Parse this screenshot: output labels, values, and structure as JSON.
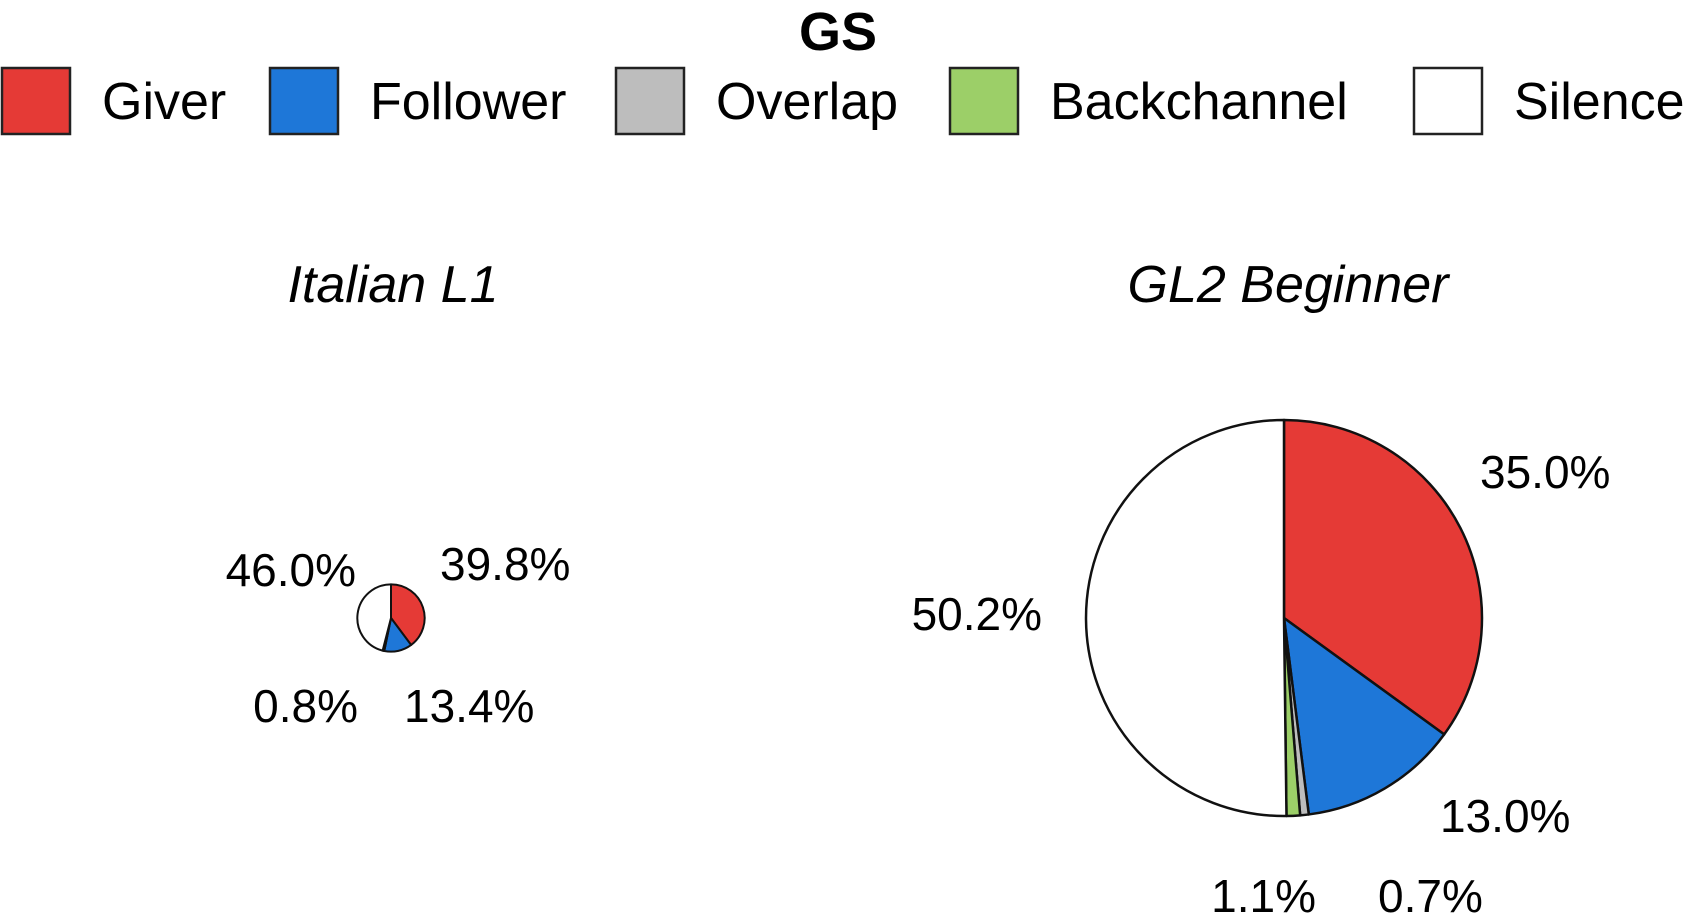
{
  "title": "GS",
  "legend": [
    {
      "label": "Giver",
      "color": "#e53a36"
    },
    {
      "label": "Follower",
      "color": "#1e77d8"
    },
    {
      "label": "Overlap",
      "color": "#bdbdbd"
    },
    {
      "label": "Backchannel",
      "color": "#9ccf68"
    },
    {
      "label": "Silence",
      "color": "#ffffff"
    }
  ],
  "chart_data": [
    {
      "type": "pie",
      "title": "Italian L1",
      "categories": [
        "Giver",
        "Follower",
        "Overlap",
        "Backchannel",
        "Silence"
      ],
      "values": [
        39.8,
        13.4,
        0.0,
        0.8,
        46.0
      ],
      "value_labels": [
        "39.8%",
        "13.4%",
        null,
        "0.8%",
        "46.0%"
      ],
      "relative_size": 0.17
    },
    {
      "type": "pie",
      "title": "GL2 Beginner",
      "categories": [
        "Giver",
        "Follower",
        "Overlap",
        "Backchannel",
        "Silence"
      ],
      "values": [
        35.0,
        13.0,
        0.7,
        1.1,
        50.2
      ],
      "value_labels": [
        "35.0%",
        "13.0%",
        "0.7%",
        "1.1%",
        "50.2%"
      ],
      "relative_size": 1.0
    }
  ]
}
